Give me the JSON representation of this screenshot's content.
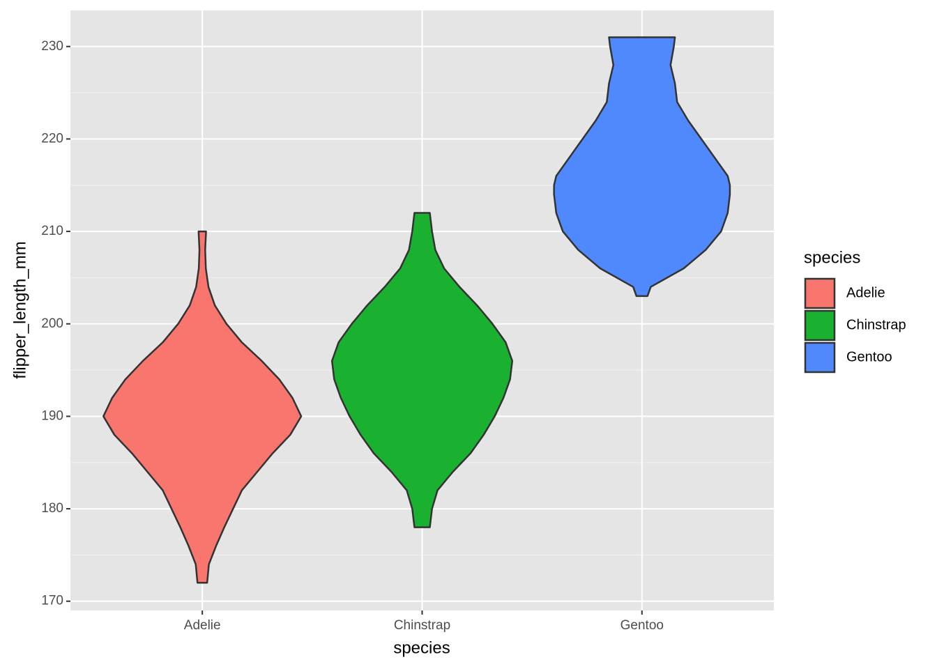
{
  "chart_data": {
    "type": "violin",
    "categories": [
      "Adelie",
      "Chinstrap",
      "Gentoo"
    ],
    "x_label": "species",
    "y_label": "flipper_length_mm",
    "legend_title": "species",
    "ylim": [
      169.0,
      233.9
    ],
    "yticks": [
      170,
      180,
      190,
      200,
      210,
      220,
      230
    ],
    "y_minor_ticks": [
      175,
      185,
      195,
      205,
      215,
      225
    ],
    "grid": true,
    "legend": "right",
    "series": [
      {
        "name": "Adelie",
        "color": "#f8766d",
        "y": [
          172,
          174,
          176,
          178,
          180,
          182,
          184,
          186,
          188,
          190,
          192,
          194,
          196,
          198,
          200,
          202,
          204,
          206,
          208,
          210
        ],
        "half_widths": [
          0.022,
          0.03,
          0.063,
          0.1,
          0.14,
          0.18,
          0.25,
          0.32,
          0.4,
          0.45,
          0.41,
          0.35,
          0.27,
          0.18,
          0.11,
          0.057,
          0.028,
          0.016,
          0.013,
          0.017
        ]
      },
      {
        "name": "Chinstrap",
        "color": "#1ab130",
        "y": [
          178,
          180,
          182,
          184,
          186,
          188,
          190,
          192,
          194,
          196,
          198,
          200,
          202,
          204,
          206,
          208,
          210,
          212
        ],
        "half_widths": [
          0.035,
          0.045,
          0.07,
          0.14,
          0.22,
          0.28,
          0.33,
          0.37,
          0.4,
          0.41,
          0.38,
          0.32,
          0.25,
          0.17,
          0.1,
          0.06,
          0.045,
          0.035
        ]
      },
      {
        "name": "Gentoo",
        "color": "#5088fe",
        "y": [
          203,
          204,
          206,
          208,
          210,
          212,
          214,
          215,
          216,
          218,
          220,
          222,
          224,
          226,
          228,
          230,
          231
        ],
        "half_widths": [
          0.025,
          0.04,
          0.19,
          0.29,
          0.36,
          0.39,
          0.4,
          0.4,
          0.39,
          0.33,
          0.27,
          0.21,
          0.16,
          0.15,
          0.13,
          0.145,
          0.15
        ]
      }
    ]
  }
}
